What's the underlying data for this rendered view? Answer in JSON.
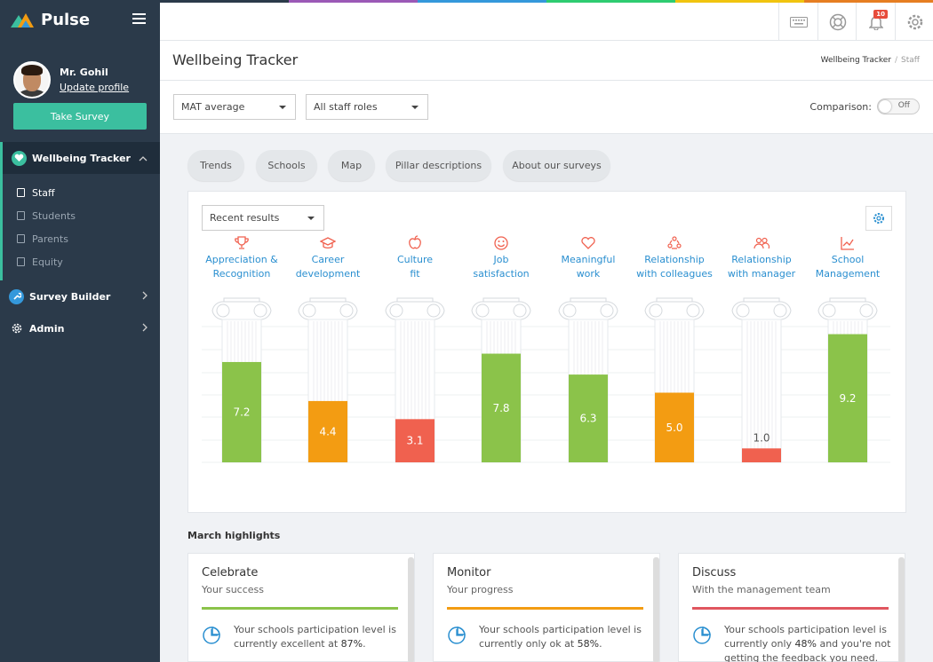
{
  "app": {
    "name": "Pulse"
  },
  "topbar": {
    "colors": [
      "#2b3a4a",
      "#9b59b6",
      "#3498db",
      "#2ecc71",
      "#f1c40f",
      "#e67e22"
    ],
    "notifications_count": "10"
  },
  "user": {
    "name": "Mr. Gohil",
    "update_label": "Update profile"
  },
  "sidebar": {
    "take_survey": "Take Survey",
    "section": {
      "label": "Wellbeing Tracker"
    },
    "sub_items": [
      {
        "label": "Staff"
      },
      {
        "label": "Students"
      },
      {
        "label": "Parents"
      },
      {
        "label": "Equity"
      }
    ],
    "items": [
      {
        "label": "Survey Builder"
      },
      {
        "label": "Admin"
      }
    ]
  },
  "page": {
    "title": "Wellbeing Tracker",
    "breadcrumb": {
      "parent": "Wellbeing Tracker",
      "current": "Staff"
    }
  },
  "filters": {
    "average": "MAT average",
    "roles": "All staff roles",
    "comparison_label": "Comparison:",
    "comparison_state": "Off"
  },
  "tabs": [
    {
      "label": "Trends"
    },
    {
      "label": "Schools"
    },
    {
      "label": "Map"
    },
    {
      "label": "Pillar descriptions"
    },
    {
      "label": "About our surveys"
    }
  ],
  "chart_controls": {
    "results_select": "Recent results"
  },
  "chart_data": {
    "type": "bar",
    "categories": [
      [
        "Appreciation &",
        "Recognition"
      ],
      [
        "Career",
        "development"
      ],
      [
        "Culture",
        "fit"
      ],
      [
        "Job",
        "satisfaction"
      ],
      [
        "Meaningful",
        "work"
      ],
      [
        "Relationship",
        "with colleagues"
      ],
      [
        "Relationship",
        "with manager"
      ],
      [
        "School",
        "Management"
      ]
    ],
    "values": [
      7.2,
      4.4,
      3.1,
      7.8,
      6.3,
      5.0,
      1.0,
      9.2
    ],
    "value_labels": [
      "7.2",
      "4.4",
      "3.1",
      "7.8",
      "6.3",
      "5.0",
      "1.0",
      "9.2"
    ],
    "ylim": [
      0,
      10
    ],
    "colors": {
      "high": "#8bc34a",
      "mid": "#f39c12",
      "low": "#f0614f"
    },
    "thresholds": {
      "high": 6,
      "mid": 4
    },
    "icons": [
      "trophy-icon",
      "graduation-cap-icon",
      "apple-icon",
      "smiley-icon",
      "heart-icon",
      "people-circle-icon",
      "people-icon",
      "line-chart-icon"
    ],
    "grid": true
  },
  "highlights": {
    "title": "March highlights",
    "cards": [
      {
        "title": "Celebrate",
        "subtitle": "Your success",
        "color": "#8bc34a",
        "pre": "Your schools participation level is currently excellent at ",
        "value": "87%",
        "post": "."
      },
      {
        "title": "Monitor",
        "subtitle": "Your progress",
        "color": "#f39c12",
        "pre": "Your schools participation level is currently only ok at ",
        "value": "58%",
        "post": "."
      },
      {
        "title": "Discuss",
        "subtitle": "With the management team",
        "color": "#e0565f",
        "pre": "Your schools participation level is currently only ",
        "value": "48%",
        "post": " and you're not getting the feedback you need."
      }
    ]
  }
}
